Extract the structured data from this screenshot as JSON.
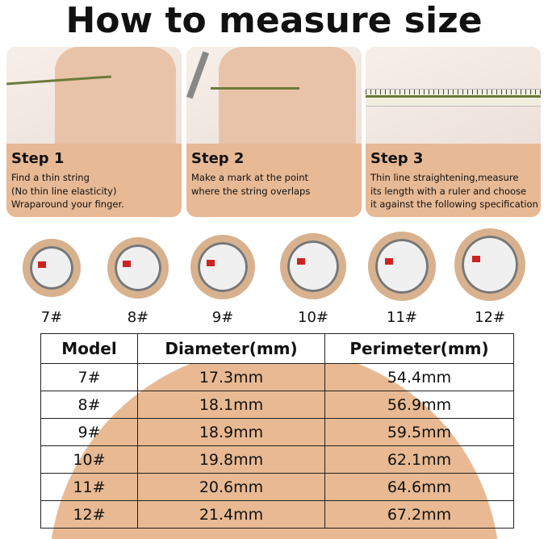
{
  "title": "How to measure size",
  "steps": [
    {
      "heading": "Step 1",
      "text": "Find a thin string\n(No thin line elasticity)\nWraparound your finger."
    },
    {
      "heading": "Step 2",
      "text": "Make a mark at the point\nwhere the string overlaps"
    },
    {
      "heading": "Step 3",
      "text": "Thin line straightening,measure\nits length with a ruler and choose\nit against the following specification"
    }
  ],
  "rings": [
    "7#",
    "8#",
    "9#",
    "10#",
    "11#",
    "12#"
  ],
  "colors": {
    "accent": "#e7b995",
    "ring_gold": "#d8b28e"
  },
  "table": {
    "headers": [
      "Model",
      "Diameter(mm)",
      "Perimeter(mm)"
    ],
    "rows": [
      [
        "7#",
        "17.3mm",
        "54.4mm"
      ],
      [
        "8#",
        "18.1mm",
        "56.9mm"
      ],
      [
        "9#",
        "18.9mm",
        "59.5mm"
      ],
      [
        "10#",
        "19.8mm",
        "62.1mm"
      ],
      [
        "11#",
        "20.6mm",
        "64.6mm"
      ],
      [
        "12#",
        "21.4mm",
        "67.2mm"
      ]
    ]
  }
}
